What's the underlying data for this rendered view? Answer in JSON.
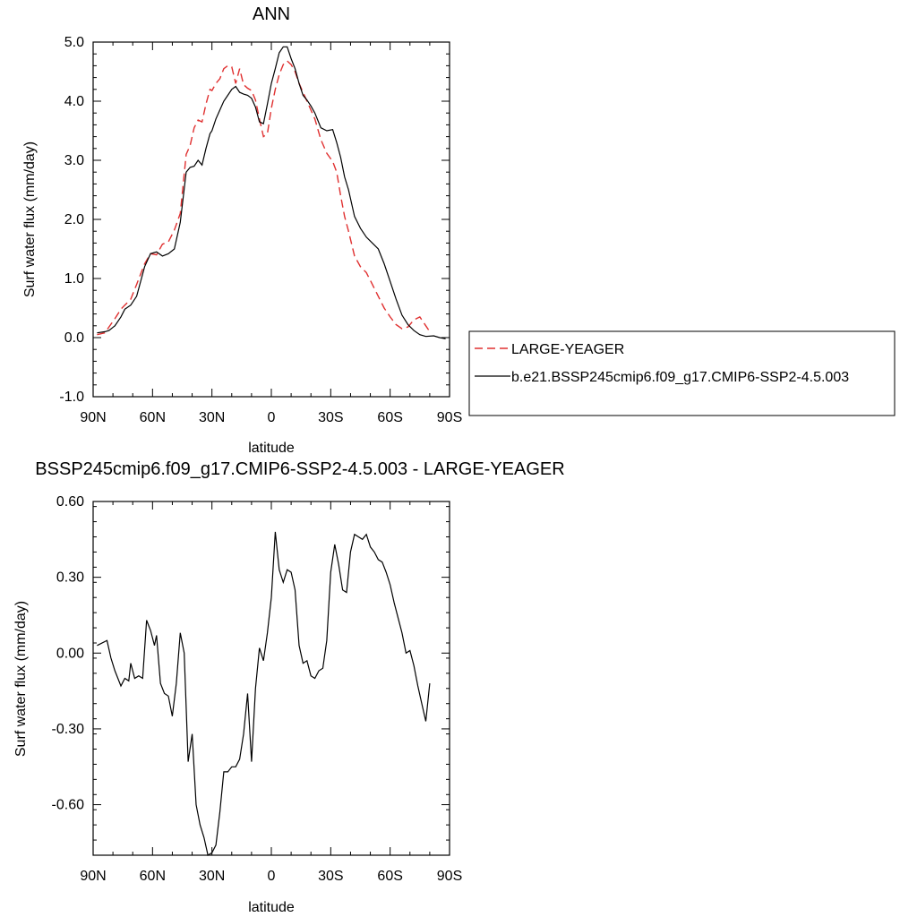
{
  "chart_data": [
    {
      "type": "line",
      "title": "ANN",
      "xlabel": "latitude",
      "ylabel": "Surf water flux (mm/day)",
      "xlim": [
        90,
        -90
      ],
      "ylim": [
        -1.0,
        5.0
      ],
      "x_ticks": [
        90,
        60,
        30,
        0,
        -30,
        -60,
        -90
      ],
      "x_tick_labels": [
        "90N",
        "60N",
        "30N",
        "0",
        "30S",
        "60S",
        "90S"
      ],
      "y_ticks": [
        -1.0,
        0.0,
        1.0,
        2.0,
        3.0,
        4.0,
        5.0
      ],
      "y_tick_labels": [
        "-1.0",
        "0.0",
        "1.0",
        "2.0",
        "3.0",
        "4.0",
        "5.0"
      ],
      "grid": false,
      "legend_position": "right",
      "series": [
        {
          "name": "LARGE-YEAGER",
          "color": "#e03030",
          "dash": "dashed",
          "x": [
            88,
            84,
            82,
            79,
            76,
            74,
            71,
            68,
            64,
            61,
            58,
            55,
            52,
            49,
            46,
            43,
            41,
            39,
            37,
            35,
            33,
            31,
            30,
            28,
            26,
            24,
            22,
            20,
            18,
            16,
            14,
            12,
            10,
            8,
            6,
            4,
            2,
            0,
            -2,
            -4,
            -6,
            -8,
            -10,
            -12,
            -14,
            -16,
            -18,
            -20,
            -22,
            -25,
            -28,
            -31,
            -33,
            -35,
            -37,
            -39,
            -42,
            -45,
            -48,
            -51,
            -54,
            -57,
            -60,
            -63,
            -66,
            -69,
            -72,
            -75,
            -78,
            -80
          ],
          "y": [
            0.05,
            0.08,
            0.18,
            0.32,
            0.48,
            0.55,
            0.65,
            0.9,
            1.25,
            1.42,
            1.4,
            1.58,
            1.62,
            1.82,
            2.1,
            3.1,
            3.25,
            3.55,
            3.68,
            3.65,
            3.95,
            4.2,
            4.18,
            4.3,
            4.38,
            4.55,
            4.6,
            4.58,
            4.3,
            4.55,
            4.28,
            4.22,
            4.18,
            4.02,
            3.7,
            3.4,
            3.45,
            3.88,
            4.2,
            4.45,
            4.62,
            4.68,
            4.62,
            4.5,
            4.3,
            4.15,
            4.0,
            3.85,
            3.7,
            3.35,
            3.12,
            2.98,
            2.8,
            2.4,
            2.05,
            1.8,
            1.38,
            1.2,
            1.1,
            0.9,
            0.7,
            0.5,
            0.35,
            0.22,
            0.15,
            0.18,
            0.3,
            0.35,
            0.2,
            0.1
          ]
        },
        {
          "name": "b.e21.BSSP245cmip6.f09_g17.CMIP6-SSP2-4.5.003",
          "color": "#000000",
          "dash": "solid",
          "x": [
            88,
            84,
            82,
            79,
            76,
            74,
            71,
            68,
            64,
            61,
            58,
            55,
            52,
            49,
            46,
            43,
            41,
            39,
            37,
            35,
            33,
            31,
            30,
            28,
            26,
            24,
            22,
            20,
            18,
            16,
            14,
            12,
            10,
            8,
            6,
            4,
            2,
            0,
            -2,
            -4,
            -6,
            -8,
            -10,
            -12,
            -14,
            -16,
            -18,
            -20,
            -22,
            -25,
            -28,
            -31,
            -33,
            -35,
            -37,
            -39,
            -42,
            -45,
            -48,
            -51,
            -54,
            -57,
            -60,
            -63,
            -66,
            -69,
            -72,
            -75,
            -78,
            -82,
            -85,
            -88
          ],
          "y": [
            0.08,
            0.1,
            0.12,
            0.2,
            0.35,
            0.48,
            0.55,
            0.7,
            1.2,
            1.42,
            1.45,
            1.38,
            1.42,
            1.5,
            1.95,
            2.8,
            2.88,
            2.9,
            3.0,
            2.92,
            3.2,
            3.45,
            3.5,
            3.7,
            3.85,
            4.0,
            4.1,
            4.2,
            4.25,
            4.15,
            4.12,
            4.1,
            4.05,
            3.9,
            3.65,
            3.62,
            3.95,
            4.3,
            4.55,
            4.82,
            4.92,
            4.92,
            4.72,
            4.55,
            4.3,
            4.1,
            4.02,
            3.92,
            3.8,
            3.55,
            3.5,
            3.52,
            3.3,
            3.05,
            2.72,
            2.5,
            2.05,
            1.85,
            1.7,
            1.6,
            1.5,
            1.25,
            0.95,
            0.65,
            0.38,
            0.22,
            0.12,
            0.05,
            0.02,
            0.03,
            0.0,
            -0.02
          ]
        }
      ]
    },
    {
      "type": "line",
      "title": "BSSP245cmip6.f09_g17.CMIP6-SSP2-4.5.003 - LARGE-YEAGER",
      "xlabel": "latitude",
      "ylabel": "Surf water flux (mm/day)",
      "xlim": [
        90,
        -90
      ],
      "ylim": [
        -0.8,
        0.6
      ],
      "x_ticks": [
        90,
        60,
        30,
        0,
        -30,
        -60,
        -90
      ],
      "x_tick_labels": [
        "90N",
        "60N",
        "30N",
        "0",
        "30S",
        "60S",
        "90S"
      ],
      "y_ticks": [
        -0.6,
        -0.3,
        0.0,
        0.3,
        0.6
      ],
      "y_tick_labels": [
        "-0.60",
        "-0.30",
        "0.00",
        "0.30",
        "0.60"
      ],
      "grid": false,
      "series": [
        {
          "color": "#000000",
          "dash": "solid",
          "x": [
            88,
            83,
            81,
            79,
            76,
            74,
            72,
            71,
            69,
            67,
            65,
            63,
            61,
            59,
            58,
            56,
            54,
            52,
            50,
            48,
            46,
            44,
            42,
            40,
            38,
            36,
            34,
            32,
            30,
            28,
            26,
            24,
            22,
            20,
            18,
            16,
            14,
            12,
            10,
            8,
            6,
            4,
            2,
            0,
            -2,
            -4,
            -6,
            -8,
            -10,
            -12,
            -14,
            -16,
            -18,
            -20,
            -22,
            -24,
            -26,
            -28,
            -30,
            -32,
            -34,
            -36,
            -38,
            -40,
            -42,
            -44,
            -46,
            -48,
            -50,
            -52,
            -54,
            -56,
            -58,
            -60,
            -62,
            -64,
            -66,
            -68,
            -70,
            -72,
            -74,
            -76,
            -78,
            -80
          ],
          "y": [
            0.03,
            0.05,
            -0.02,
            -0.07,
            -0.13,
            -0.1,
            -0.11,
            -0.04,
            -0.1,
            -0.09,
            -0.1,
            0.13,
            0.09,
            0.03,
            0.07,
            -0.12,
            -0.16,
            -0.17,
            -0.25,
            -0.12,
            0.08,
            0.0,
            -0.43,
            -0.32,
            -0.6,
            -0.68,
            -0.73,
            -0.8,
            -0.79,
            -0.76,
            -0.63,
            -0.47,
            -0.47,
            -0.45,
            -0.45,
            -0.42,
            -0.32,
            -0.16,
            -0.43,
            -0.14,
            0.02,
            -0.03,
            0.08,
            0.22,
            0.48,
            0.33,
            0.28,
            0.33,
            0.32,
            0.25,
            0.03,
            -0.04,
            -0.03,
            -0.09,
            -0.1,
            -0.07,
            -0.06,
            0.05,
            0.32,
            0.43,
            0.35,
            0.25,
            0.24,
            0.4,
            0.47,
            0.46,
            0.45,
            0.47,
            0.42,
            0.4,
            0.37,
            0.36,
            0.32,
            0.27,
            0.2,
            0.14,
            0.08,
            0.0,
            0.01,
            -0.05,
            -0.13,
            -0.2,
            -0.27,
            -0.12
          ]
        }
      ]
    }
  ]
}
